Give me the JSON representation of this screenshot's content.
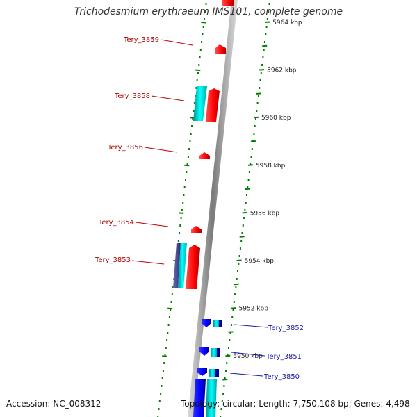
{
  "title": "Trichodesmium erythraeum IMS101, complete genome",
  "accession": "Accession: NC_008312",
  "topology": "Topology: circular; Length: 7,750,108 bp; Genes: 4,498",
  "colors": {
    "forward": "#ff0000",
    "forward_dark": "#b80000",
    "reverse": "#0000ff",
    "reverse_dark": "#000090",
    "cyan": "#00e0e0",
    "slate": "#4b4b9a",
    "tick": "#008000",
    "label_forward": "#b00000",
    "label_reverse": "#1a1aaa",
    "backbone": "#888888"
  },
  "ticks": [
    {
      "kbp": 5964,
      "label": "5964 kbp"
    },
    {
      "kbp": 5962,
      "label": "5962 kbp"
    },
    {
      "kbp": 5960,
      "label": "5960 kbp"
    },
    {
      "kbp": 5958,
      "label": "5958 kbp"
    },
    {
      "kbp": 5956,
      "label": "5956 kbp"
    },
    {
      "kbp": 5954,
      "label": "5954 kbp"
    },
    {
      "kbp": 5952,
      "label": "5952 kbp"
    },
    {
      "kbp": 5950,
      "label": "5950 kbp"
    }
  ],
  "labels": [
    {
      "name": "Tery_3859",
      "strand": "forward"
    },
    {
      "name": "Tery_3858",
      "strand": "forward"
    },
    {
      "name": "Tery_3856",
      "strand": "forward"
    },
    {
      "name": "Tery_3854",
      "strand": "forward"
    },
    {
      "name": "Tery_3853",
      "strand": "forward"
    },
    {
      "name": "Tery_3852",
      "strand": "reverse"
    },
    {
      "name": "Tery_3851",
      "strand": "reverse"
    },
    {
      "name": "Tery_3850",
      "strand": "reverse"
    }
  ]
}
